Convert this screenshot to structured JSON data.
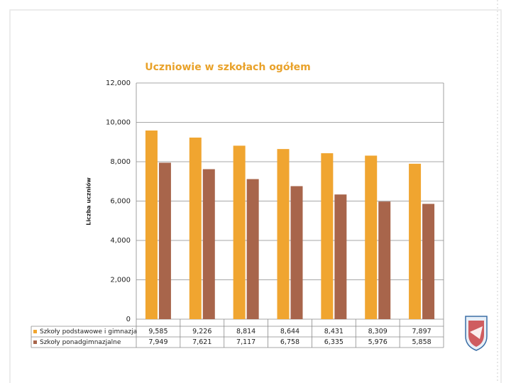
{
  "chart_data": {
    "type": "bar",
    "title": "Uczniowie w szkołach ogółem",
    "y_label": "Liczba uczniów",
    "categories": [
      null,
      null,
      null,
      null,
      null,
      null,
      null
    ],
    "series": [
      {
        "name": "Szkoły podstawowe i gimnazja",
        "color": "#f0a530",
        "values": [
          9585,
          9226,
          8814,
          8644,
          8431,
          8309,
          7897
        ],
        "value_labels": [
          "9,585",
          "9,226",
          "8,814",
          "8,644",
          "8,431",
          "8,309",
          "7,897"
        ]
      },
      {
        "name": "Szkoły ponadgimnazjalne",
        "color": "#a8654b",
        "values": [
          7949,
          7621,
          7117,
          6758,
          6335,
          5976,
          5858
        ],
        "value_labels": [
          "7,949",
          "7,621",
          "7,117",
          "6,758",
          "6,335",
          "5,976",
          "5,858"
        ]
      }
    ],
    "ylim": [
      0,
      12000
    ],
    "yticks": [
      0,
      {
        "value": 2000,
        "label": "2,000"
      },
      {
        "value": 4000,
        "label": "4,000"
      },
      {
        "value": 6000,
        "label": "6,000"
      },
      {
        "value": 8000,
        "label": "8,000"
      },
      {
        "value": 10000,
        "label": "10,000"
      },
      {
        "value": 12000,
        "label": "12,000"
      }
    ],
    "grid": true
  }
}
